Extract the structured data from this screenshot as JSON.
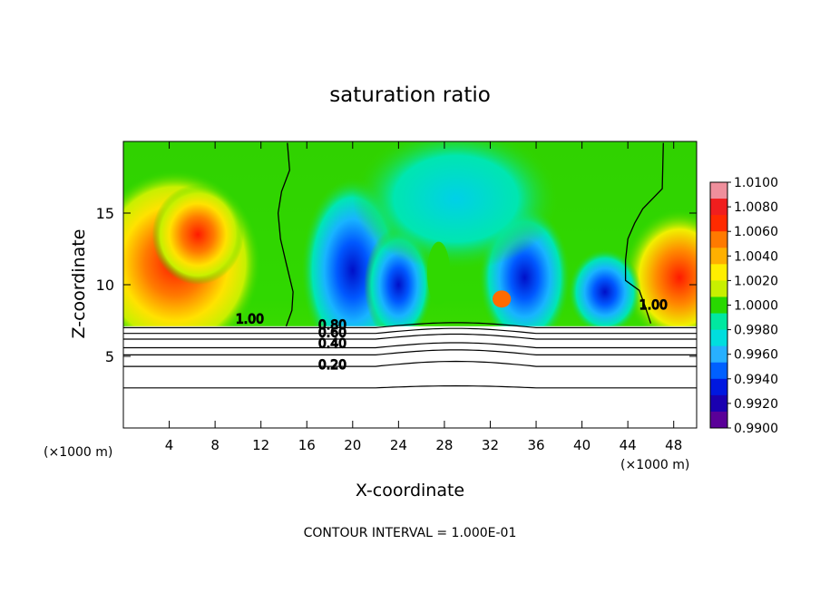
{
  "chart_data": {
    "type": "heatmap",
    "title": "saturation ratio",
    "xlabel": "X-coordinate",
    "ylabel": "Z-coordinate",
    "x_unit_left": "(×1000 m)",
    "x_unit_right": "(×1000 m)",
    "xlim": [
      0,
      50
    ],
    "ylim": [
      0,
      20
    ],
    "x_ticks": [
      4,
      8,
      12,
      16,
      20,
      24,
      28,
      32,
      36,
      40,
      44,
      48
    ],
    "y_ticks": [
      5,
      10,
      15
    ],
    "footer": "CONTOUR INTERVAL = 1.000E-01",
    "colorbar": {
      "levels": [
        "1.0100",
        "1.0080",
        "1.0060",
        "1.0040",
        "1.0020",
        "1.0000",
        "0.9980",
        "0.9960",
        "0.9940",
        "0.9920",
        "0.9900"
      ],
      "colors": [
        "#ef8f9c",
        "#f01e1e",
        "#ff2a00",
        "#ff7a00",
        "#ffb000",
        "#ffee00",
        "#c8f000",
        "#28d800",
        "#00e8a0",
        "#00dede",
        "#28b0ff",
        "#0060ff",
        "#0018e0",
        "#1a00b0",
        "#5a0098"
      ]
    },
    "contour_labels": [
      "1.00",
      "0.80",
      "0.60",
      "0.40",
      "0.20",
      "1.00"
    ],
    "contour_lines": [
      {
        "label": "1.00",
        "x": [
          14.3,
          14.5,
          13.8,
          13.5,
          13.7,
          14.2,
          14.8,
          14.7,
          14.2
        ],
        "y": [
          19.9,
          18,
          16.5,
          15,
          13.2,
          11.5,
          9.5,
          8.2,
          7.1
        ]
      },
      {
        "label": "1.00",
        "x": [
          47.1,
          47.0,
          45.3,
          44.6,
          44.0,
          43.8,
          43.8,
          45.0,
          45.5,
          46.0
        ],
        "y": [
          19.9,
          16.7,
          15.3,
          14.3,
          13.2,
          11.7,
          10.3,
          9.6,
          8.5,
          7.3
        ]
      }
    ]
  }
}
